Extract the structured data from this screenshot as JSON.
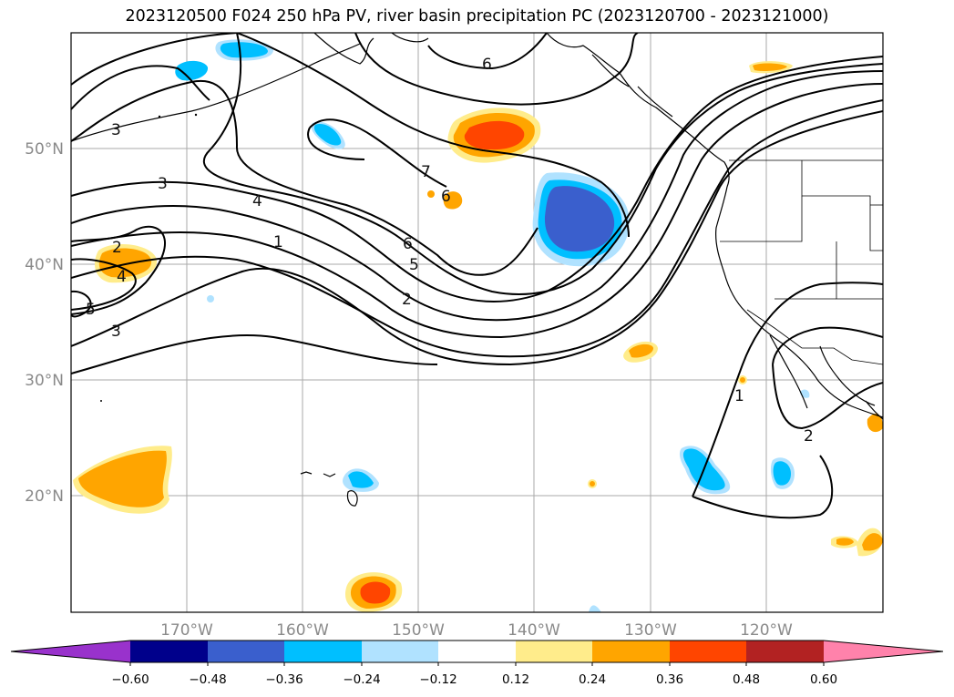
{
  "title": "2023120500 F024 250 hPa PV, river basin precipitation PC (2023120700 - 2023121000)",
  "axes": {
    "lat_labels": [
      "50°N",
      "40°N",
      "30°N",
      "20°N"
    ],
    "lon_labels": [
      "170°W",
      "160°W",
      "150°W",
      "140°W",
      "130°W",
      "120°W"
    ]
  },
  "contour_labels": [
    "6",
    "3",
    "3",
    "4",
    "1",
    "6",
    "5",
    "2",
    "7",
    "6",
    "2",
    "4",
    "5",
    "3",
    "1",
    "2"
  ],
  "colorbar": {
    "tick_labels": [
      "−0.60",
      "−0.48",
      "−0.36",
      "−0.24",
      "−0.12",
      "0.12",
      "0.24",
      "0.36",
      "0.48",
      "0.60"
    ],
    "colors": [
      "#9932cc",
      "#00008b",
      "#3a5fcd",
      "#00bfff",
      "#b0e2ff",
      "#ffffff",
      "#ffec8b",
      "#ffa500",
      "#ff4500",
      "#b22222",
      "#ff82ab"
    ],
    "extend": "both"
  }
}
